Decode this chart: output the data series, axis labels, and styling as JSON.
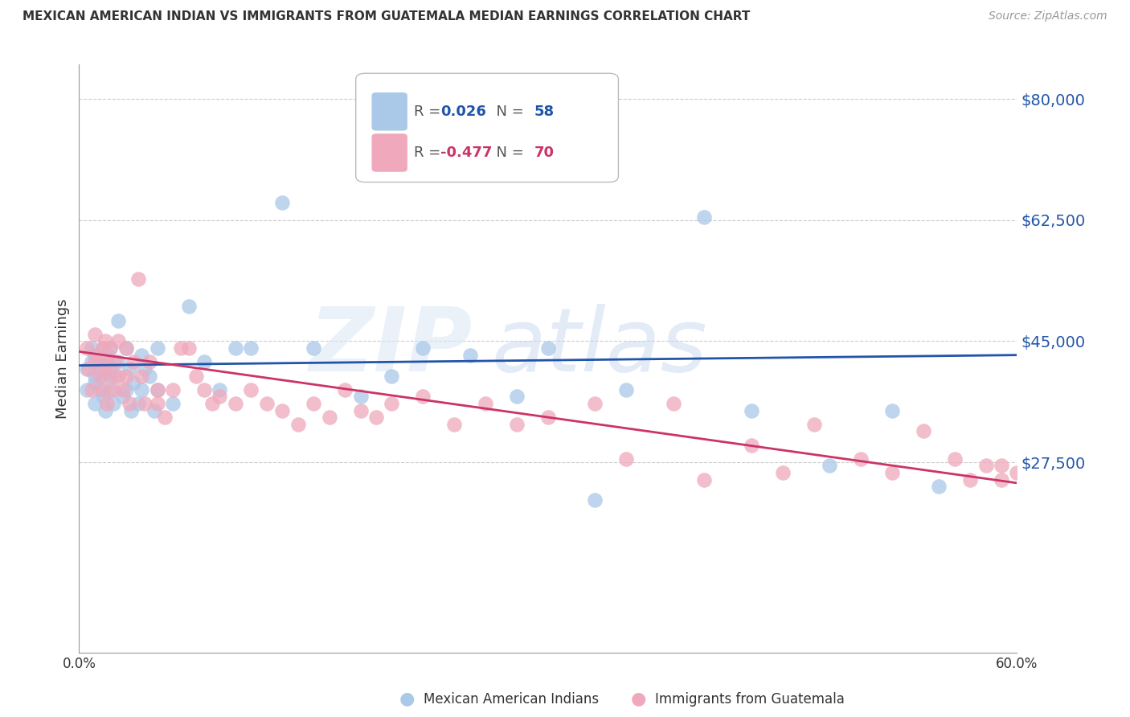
{
  "title": "MEXICAN AMERICAN INDIAN VS IMMIGRANTS FROM GUATEMALA MEDIAN EARNINGS CORRELATION CHART",
  "source": "Source: ZipAtlas.com",
  "ylabel": "Median Earnings",
  "ytick_vals": [
    27500,
    45000,
    62500,
    80000
  ],
  "ytick_labels": [
    "$27,500",
    "$45,000",
    "$62,500",
    "$80,000"
  ],
  "xlim": [
    0.0,
    0.6
  ],
  "ylim": [
    0,
    85000
  ],
  "blue_label": "Mexican American Indians",
  "pink_label": "Immigrants from Guatemala",
  "blue_color": "#aac8e8",
  "pink_color": "#f0a8bc",
  "blue_line_color": "#2255aa",
  "pink_line_color": "#cc3366",
  "legend_R_value_blue": "0.026",
  "legend_N_value_blue": "58",
  "legend_R_value_pink": "-0.477",
  "legend_N_value_pink": "70",
  "watermark_zip": "ZIP",
  "watermark_atlas": "atlas",
  "watermark_color": "#c8d8f0",
  "blue_line_y0": 41500,
  "blue_line_y1": 43000,
  "pink_line_y0": 43500,
  "pink_line_y1": 24500,
  "blue_x": [
    0.005,
    0.005,
    0.008,
    0.008,
    0.01,
    0.01,
    0.01,
    0.01,
    0.012,
    0.013,
    0.015,
    0.015,
    0.015,
    0.016,
    0.017,
    0.018,
    0.02,
    0.02,
    0.02,
    0.022,
    0.023,
    0.025,
    0.025,
    0.028,
    0.03,
    0.03,
    0.032,
    0.033,
    0.035,
    0.038,
    0.04,
    0.04,
    0.042,
    0.045,
    0.048,
    0.05,
    0.05,
    0.06,
    0.07,
    0.08,
    0.09,
    0.1,
    0.11,
    0.13,
    0.15,
    0.18,
    0.2,
    0.22,
    0.25,
    0.28,
    0.3,
    0.33,
    0.35,
    0.4,
    0.43,
    0.48,
    0.52,
    0.55
  ],
  "blue_y": [
    41000,
    38000,
    42000,
    44000,
    40000,
    43000,
    36000,
    39000,
    41000,
    38000,
    44000,
    42000,
    37000,
    40000,
    35000,
    43000,
    41000,
    44000,
    38000,
    36000,
    40000,
    48000,
    42000,
    37000,
    44000,
    38000,
    41000,
    35000,
    39000,
    36000,
    43000,
    38000,
    41000,
    40000,
    35000,
    44000,
    38000,
    36000,
    50000,
    42000,
    38000,
    44000,
    44000,
    65000,
    44000,
    37000,
    40000,
    44000,
    43000,
    37000,
    44000,
    22000,
    38000,
    63000,
    35000,
    27000,
    35000,
    24000
  ],
  "pink_x": [
    0.005,
    0.006,
    0.008,
    0.01,
    0.01,
    0.012,
    0.013,
    0.015,
    0.015,
    0.016,
    0.017,
    0.018,
    0.018,
    0.02,
    0.02,
    0.022,
    0.023,
    0.025,
    0.025,
    0.028,
    0.03,
    0.03,
    0.032,
    0.035,
    0.038,
    0.04,
    0.042,
    0.045,
    0.05,
    0.05,
    0.055,
    0.06,
    0.065,
    0.07,
    0.075,
    0.08,
    0.085,
    0.09,
    0.1,
    0.11,
    0.12,
    0.13,
    0.14,
    0.15,
    0.16,
    0.17,
    0.18,
    0.19,
    0.2,
    0.22,
    0.24,
    0.26,
    0.28,
    0.3,
    0.33,
    0.35,
    0.38,
    0.4,
    0.43,
    0.45,
    0.47,
    0.5,
    0.52,
    0.54,
    0.56,
    0.57,
    0.58,
    0.59,
    0.59,
    0.6
  ],
  "pink_y": [
    44000,
    41000,
    38000,
    46000,
    42000,
    43000,
    40000,
    44000,
    38000,
    41000,
    45000,
    42000,
    36000,
    40000,
    44000,
    38000,
    42000,
    45000,
    40000,
    38000,
    44000,
    40000,
    36000,
    42000,
    54000,
    40000,
    36000,
    42000,
    38000,
    36000,
    34000,
    38000,
    44000,
    44000,
    40000,
    38000,
    36000,
    37000,
    36000,
    38000,
    36000,
    35000,
    33000,
    36000,
    34000,
    38000,
    35000,
    34000,
    36000,
    37000,
    33000,
    36000,
    33000,
    34000,
    36000,
    28000,
    36000,
    25000,
    30000,
    26000,
    33000,
    28000,
    26000,
    32000,
    28000,
    25000,
    27000,
    27000,
    25000,
    26000
  ]
}
